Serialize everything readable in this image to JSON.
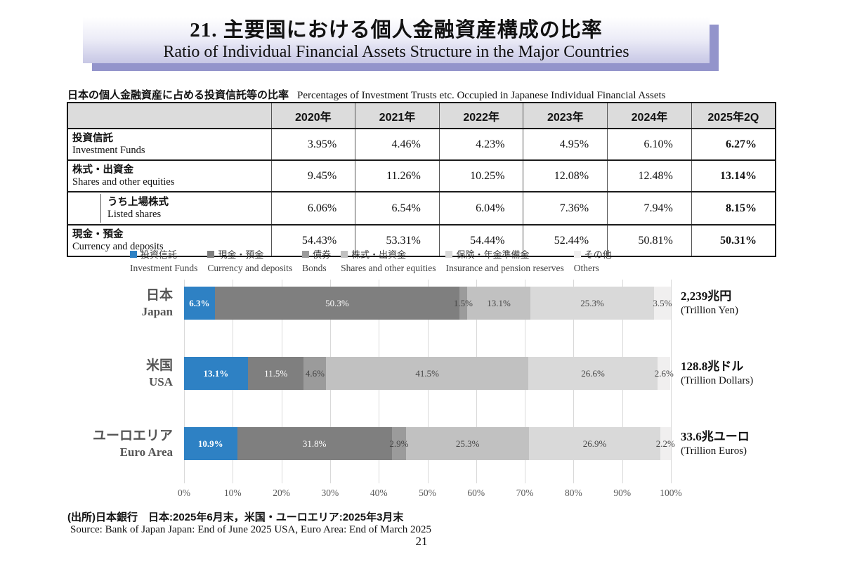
{
  "header": {
    "title_jp": "21. 主要国における個人金融資産構成の比率",
    "title_en": "Ratio of Individual Financial Assets Structure in the Major Countries"
  },
  "table": {
    "caption_jp": "日本の個人金融資産に占める投資信託等の比率",
    "caption_en": "Percentages of Investment Trusts etc. Occupied in Japanese Individual Financial Assets",
    "columns": [
      "2020年",
      "2021年",
      "2022年",
      "2023年",
      "2024年",
      "2025年2Q"
    ],
    "rows": [
      {
        "jp": "投資信託",
        "en": "Investment Funds",
        "values": [
          "3.95%",
          "4.46%",
          "4.23%",
          "4.95%",
          "6.10%",
          "6.27%"
        ]
      },
      {
        "jp": "株式・出資金",
        "en": "Shares and other equities",
        "values": [
          "9.45%",
          "11.26%",
          "10.25%",
          "12.08%",
          "12.48%",
          "13.14%"
        ]
      },
      {
        "jp": "うち上場株式",
        "en": "Listed shares",
        "values": [
          "6.06%",
          "6.54%",
          "6.04%",
          "7.36%",
          "7.94%",
          "8.15%"
        ]
      },
      {
        "jp": "現金・預金",
        "en": "Currency and deposits",
        "values": [
          "54.43%",
          "53.31%",
          "54.44%",
          "52.44%",
          "50.81%",
          "50.31%"
        ]
      }
    ]
  },
  "chart_data": {
    "type": "bar",
    "stacked": true,
    "orientation": "horizontal",
    "unit": "%",
    "xlim": [
      0,
      100
    ],
    "grid": true,
    "legend_position": "top",
    "x_ticks": [
      "0%",
      "10%",
      "20%",
      "30%",
      "40%",
      "50%",
      "60%",
      "70%",
      "80%",
      "90%",
      "100%"
    ],
    "categories": [
      {
        "jp": "日本",
        "en": "Japan",
        "total_jp": "2,239兆円",
        "total_en": "(Trillion Yen)"
      },
      {
        "jp": "米国",
        "en": "USA",
        "total_jp": "128.8兆ドル",
        "total_en": "(Trillion Dollars)"
      },
      {
        "jp": "ユーロエリア",
        "en": "Euro Area",
        "total_jp": "33.6兆ユーロ",
        "total_en": "(Trillion Euros)"
      }
    ],
    "series": [
      {
        "name_jp": "投資信託",
        "name_en": "Investment Funds",
        "color": "#2E81C4",
        "label_color": "#FFFFFF",
        "label_bold": true,
        "values": [
          6.3,
          13.1,
          10.9
        ]
      },
      {
        "name_jp": "現金・預金",
        "name_en": "Currency and deposits",
        "color": "#7F7F7F",
        "label_color": "#FFFFFF",
        "label_bold": false,
        "values": [
          50.3,
          11.5,
          31.8
        ]
      },
      {
        "name_jp": "債券",
        "name_en": "Bonds",
        "color": "#9B9B9B",
        "label_color": "#474747",
        "label_bold": false,
        "values": [
          1.5,
          4.6,
          2.9
        ]
      },
      {
        "name_jp": "株式・出資金",
        "name_en": "Shares and other equities",
        "color": "#C1C1C1",
        "label_color": "#474747",
        "label_bold": false,
        "values": [
          13.1,
          41.5,
          25.3
        ]
      },
      {
        "name_jp": "保険・年金準備金",
        "name_en": "Insurance and pension reserves",
        "color": "#D9D9D9",
        "label_color": "#474747",
        "label_bold": false,
        "values": [
          25.3,
          26.6,
          26.9
        ]
      },
      {
        "name_jp": "その他",
        "name_en": "Others",
        "color": "#F0EFEF",
        "label_color": "#474747",
        "label_bold": false,
        "values": [
          3.5,
          2.6,
          2.2
        ]
      }
    ]
  },
  "footer": {
    "source_jp": "(出所)日本銀行　日本:2025年6月末，米国・ユーロエリア:2025年3月末",
    "source_en": "Source: Bank of Japan  Japan: End of June 2025 USA, Euro Area: End of March 2025",
    "page_number": "21"
  }
}
